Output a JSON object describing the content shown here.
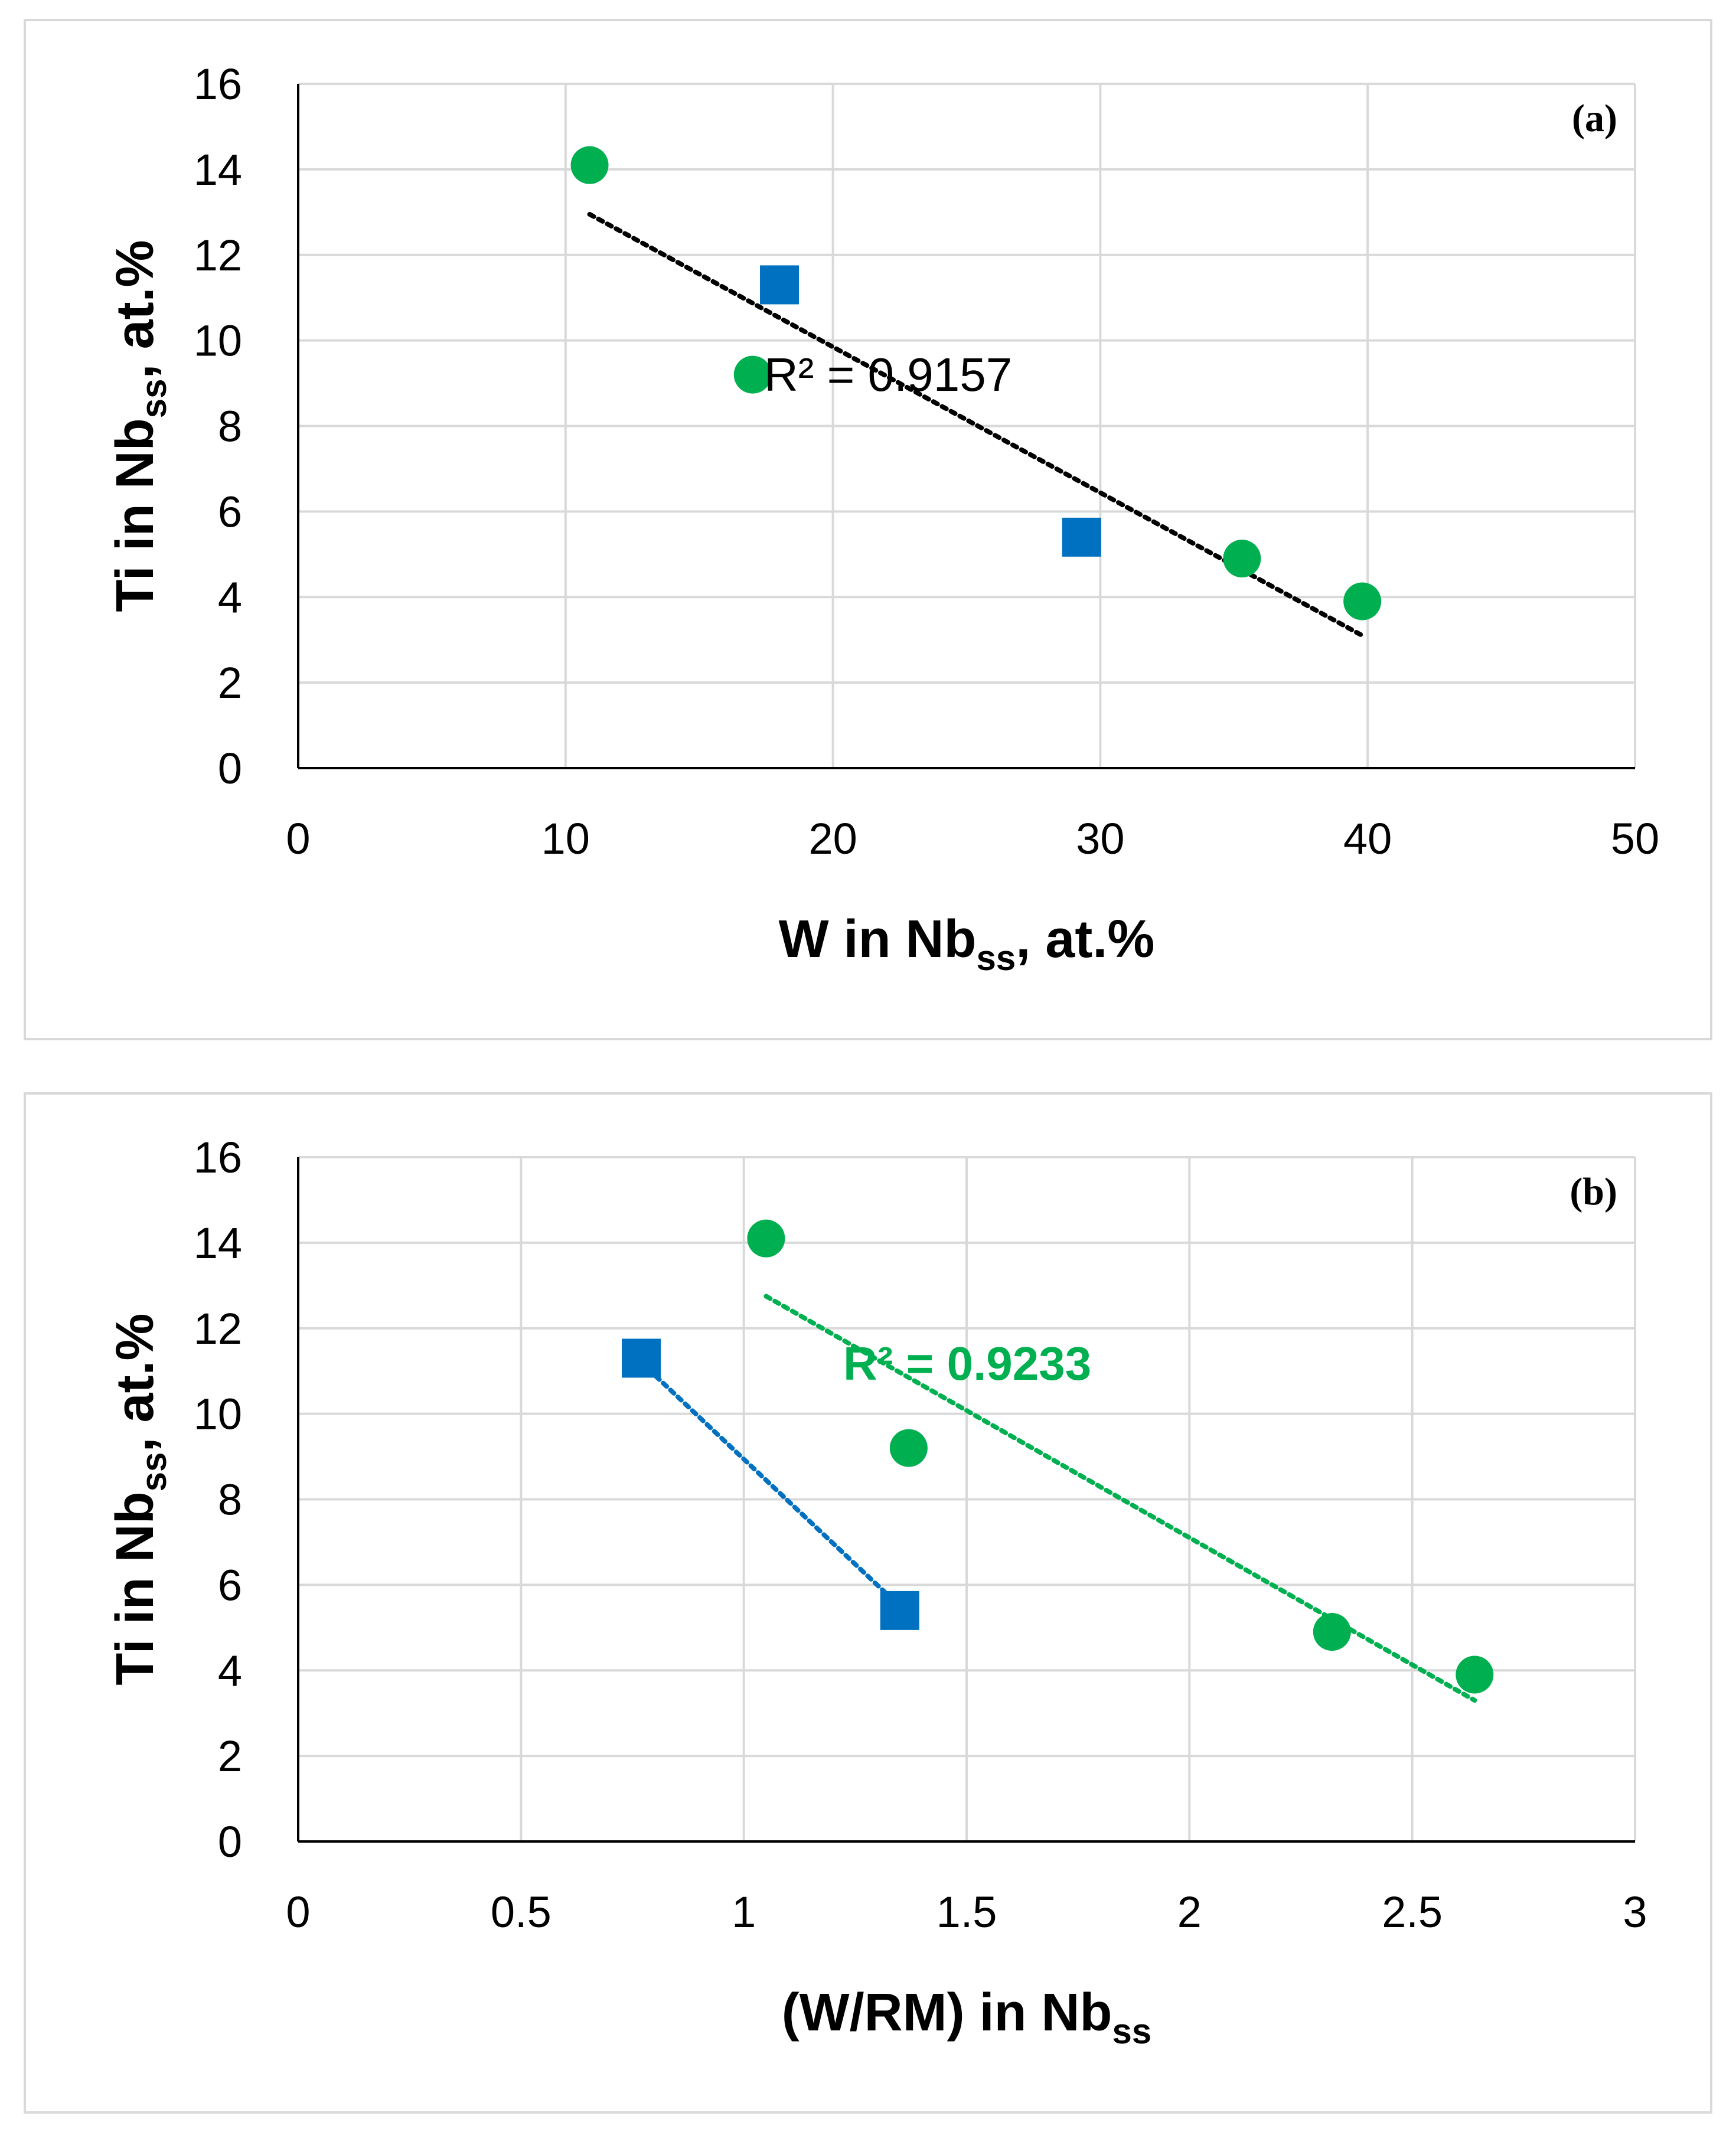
{
  "colors": {
    "green": "#00b050",
    "blue": "#0070c0",
    "grid": "#d9d9d9",
    "axis": "#000000"
  },
  "chart_data": [
    {
      "type": "scatter",
      "panel_label": "(a)",
      "xlabel": {
        "main": "W in Nb",
        "sub": "ss",
        "tail": ", at.%"
      },
      "ylabel": {
        "main": "Ti in Nb",
        "sub": "ss",
        "tail": ", at.%"
      },
      "xlim": [
        0,
        50
      ],
      "ylim": [
        0,
        16
      ],
      "xticks": [
        0,
        10,
        20,
        30,
        40,
        50
      ],
      "xtick_labels": [
        "0",
        "10",
        "20",
        "30",
        "40",
        "50"
      ],
      "yticks": [
        0,
        2,
        4,
        6,
        8,
        10,
        12,
        14,
        16
      ],
      "ytick_labels": [
        "0",
        "2",
        "4",
        "6",
        "8",
        "10",
        "12",
        "14",
        "16"
      ],
      "grid": true,
      "series": [
        {
          "name": "circles",
          "marker": "circle",
          "color": "#00b050",
          "x": [
            10.9,
            17.0,
            35.3,
            39.8
          ],
          "y": [
            14.1,
            9.2,
            4.9,
            3.9
          ]
        },
        {
          "name": "squares",
          "marker": "square",
          "color": "#0070c0",
          "x": [
            18.0,
            29.3
          ],
          "y": [
            11.3,
            5.4
          ]
        }
      ],
      "trendlines": [
        {
          "color": "#000000",
          "x": [
            10.9,
            39.8
          ],
          "y": [
            12.95,
            3.1
          ],
          "r2_label": "R² = 0.9157",
          "bold": false
        }
      ]
    },
    {
      "type": "scatter",
      "panel_label": "(b)",
      "xlabel": {
        "main": "(W/RM) in Nb",
        "sub": "ss",
        "tail": ""
      },
      "ylabel": {
        "main": "Ti in Nb",
        "sub": "ss",
        "tail": ", at.%"
      },
      "xlim": [
        0,
        3
      ],
      "ylim": [
        0,
        16
      ],
      "xticks": [
        0,
        0.5,
        1,
        1.5,
        2,
        2.5,
        3
      ],
      "xtick_labels": [
        "0",
        "0.5",
        "1",
        "1.5",
        "2",
        "2.5",
        "3"
      ],
      "yticks": [
        0,
        2,
        4,
        6,
        8,
        10,
        12,
        14,
        16
      ],
      "ytick_labels": [
        "0",
        "2",
        "4",
        "6",
        "8",
        "10",
        "12",
        "14",
        "16"
      ],
      "grid": true,
      "series": [
        {
          "name": "circles",
          "marker": "circle",
          "color": "#00b050",
          "x": [
            1.05,
            1.37,
            2.32,
            2.64
          ],
          "y": [
            14.1,
            9.2,
            4.9,
            3.9
          ]
        },
        {
          "name": "squares",
          "marker": "square",
          "color": "#0070c0",
          "x": [
            0.77,
            1.35
          ],
          "y": [
            11.3,
            5.4
          ]
        }
      ],
      "trendlines": [
        {
          "color": "#00b050",
          "x": [
            1.05,
            2.64
          ],
          "y": [
            12.75,
            3.3
          ],
          "r2_label": "R² = 0.9233",
          "bold": true
        },
        {
          "color": "#0070c0",
          "x": [
            0.77,
            1.35
          ],
          "y": [
            11.2,
            5.5
          ],
          "r2_label": "",
          "bold": false
        }
      ]
    }
  ]
}
